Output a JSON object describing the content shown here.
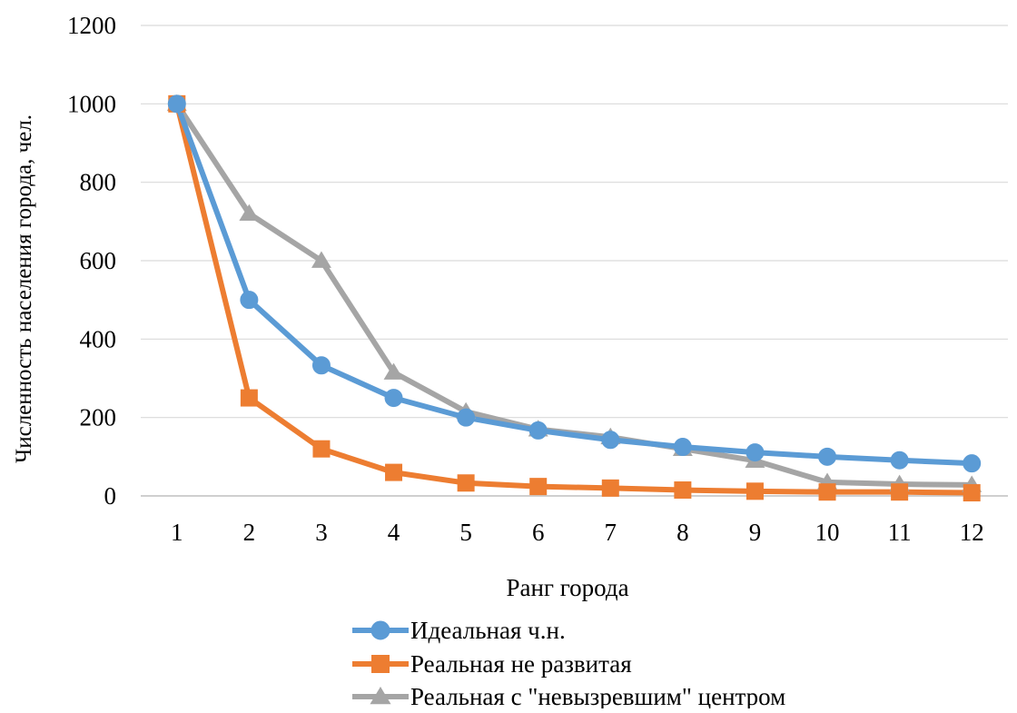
{
  "chart_data": {
    "type": "line",
    "x": [
      1,
      2,
      3,
      4,
      5,
      6,
      7,
      8,
      9,
      10,
      11,
      12
    ],
    "categories": [
      "1",
      "2",
      "3",
      "4",
      "5",
      "6",
      "7",
      "8",
      "9",
      "10",
      "11",
      "12"
    ],
    "xlabel": "Ранг города",
    "ylabel": "Численность населения города, чел.",
    "ylim": [
      0,
      1200
    ],
    "yticks": [
      0,
      200,
      400,
      600,
      800,
      1000,
      1200
    ],
    "grid": "horizontal",
    "legend_position": "bottom",
    "series": [
      {
        "name": "Идеальная ч.н.",
        "color": "#5B9BD5",
        "marker": "circle",
        "values": [
          1000,
          500,
          333,
          250,
          200,
          167,
          143,
          125,
          111,
          100,
          91,
          83
        ]
      },
      {
        "name": "Реальная не развитая",
        "color": "#ED7D31",
        "marker": "square",
        "values": [
          1000,
          250,
          120,
          60,
          33,
          24,
          20,
          15,
          12,
          10,
          10,
          8
        ]
      },
      {
        "name": "Реальная с \"невызревшим\" центром",
        "color": "#A5A5A5",
        "marker": "triangle",
        "values": [
          1000,
          720,
          600,
          315,
          215,
          170,
          150,
          120,
          90,
          35,
          30,
          28
        ]
      }
    ]
  }
}
